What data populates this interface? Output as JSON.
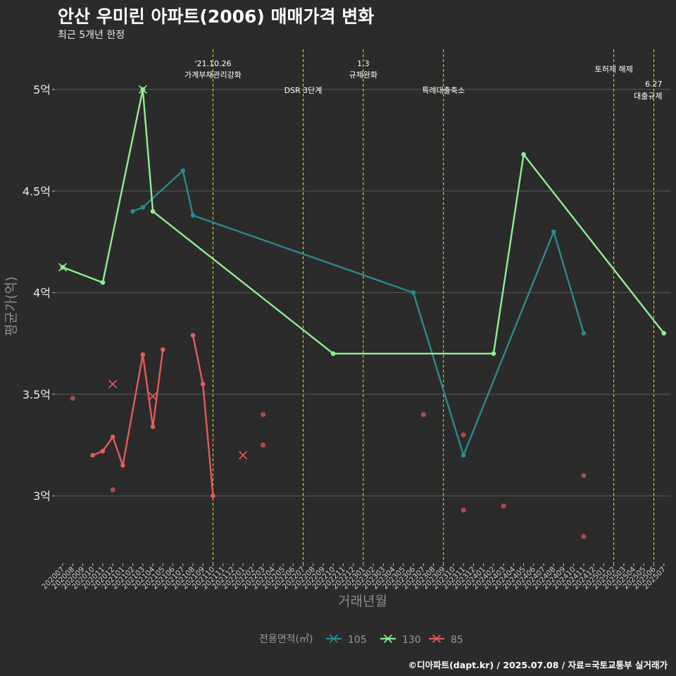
{
  "header": {
    "title": "안산 우미린 아파트(2006) 매매가격 변화",
    "subtitle": "최근 5개년 한정"
  },
  "footer": {
    "caption": "©디아파트(dapt.kr) / 2025.07.08 / 자료=국토교통부 실거래가"
  },
  "colors": {
    "background": "#2b2b2b",
    "grid": "#5a5a5a",
    "event_line": "#e6e61e",
    "s105": "#2a8a8c",
    "s130": "#90ee90",
    "s85": "#e85a5a"
  },
  "chart_data": {
    "type": "line",
    "title": "안산 우미린 아파트(2006) 매매가격 변화",
    "subtitle": "최근 5개년 한정",
    "xlabel": "거래년월",
    "ylabel": "평균가(억)",
    "ylim": [
      2.68,
      5.2
    ],
    "yticks": [
      3,
      3.5,
      4,
      4.5,
      5
    ],
    "ytick_labels": [
      "3억",
      "3.5억",
      "4억",
      "4.5억",
      "5억"
    ],
    "grid": "horizontal",
    "legend": {
      "title": "전용면적(㎡)",
      "position": "bottom",
      "entries": [
        "105",
        "130",
        "85"
      ]
    },
    "categories": [
      "202007",
      "202008",
      "202009",
      "202010",
      "202011",
      "202012",
      "202101",
      "202102",
      "202103",
      "202104",
      "202105",
      "202106",
      "202107",
      "202108",
      "202109",
      "202110",
      "202111",
      "202112",
      "202201",
      "202202",
      "202203",
      "202204",
      "202205",
      "202206",
      "202207",
      "202208",
      "202209",
      "202210",
      "202211",
      "202212",
      "202301",
      "202302",
      "202303",
      "202304",
      "202305",
      "202306",
      "202307",
      "202308",
      "202309",
      "202310",
      "202311",
      "202312",
      "202401",
      "202402",
      "202403",
      "202404",
      "202405",
      "202406",
      "202407",
      "202408",
      "202409",
      "202410",
      "202411",
      "202412",
      "202501",
      "202502",
      "202503",
      "202504",
      "202505",
      "202506",
      "202507"
    ],
    "events": [
      {
        "x": "202110",
        "label_line1": "'21.10.26",
        "label_line2": "가계부채관리강화"
      },
      {
        "x": "202207",
        "label_line1": "",
        "label_line2": "DSR 3단계"
      },
      {
        "x": "202301",
        "label_line1": "1.3",
        "label_line2": "규제완화"
      },
      {
        "x": "202309",
        "label_line1": "",
        "label_line2": "특례대출축소"
      },
      {
        "x": "202502",
        "label_line1": "",
        "label_line2": "토허제 해제"
      },
      {
        "x": "202506",
        "label_line1": "6.27",
        "label_line2": "대출규제"
      }
    ],
    "series": [
      {
        "name": "105",
        "line": [
          [
            "202102",
            4.4
          ],
          [
            "202103",
            4.42
          ],
          [
            "202107",
            4.6
          ],
          [
            "202108",
            4.38
          ],
          [
            "202306",
            4.0
          ],
          [
            "202311",
            3.2
          ],
          [
            "202408",
            4.3
          ],
          [
            "202411",
            3.8
          ]
        ],
        "markers": [],
        "points": []
      },
      {
        "name": "130",
        "line": [
          [
            "202007",
            4.125
          ],
          [
            "202011",
            4.05
          ],
          [
            "202103",
            5.0
          ],
          [
            "202104",
            4.4
          ],
          [
            "202210",
            3.7
          ],
          [
            "202402",
            3.7
          ],
          [
            "202405",
            4.68
          ],
          [
            "202507",
            3.8
          ]
        ],
        "markers": [
          [
            "202007",
            4.125
          ],
          [
            "202103",
            5.0
          ]
        ],
        "points": []
      },
      {
        "name": "85",
        "line": [
          [
            "202010",
            3.2
          ],
          [
            "202011",
            3.22
          ],
          [
            "202012",
            3.29
          ],
          [
            "202101",
            3.15
          ],
          [
            "202103",
            3.695
          ],
          [
            "202104",
            3.34
          ],
          [
            "202105",
            3.72
          ]
        ],
        "line2": [
          [
            "202108",
            3.79
          ],
          [
            "202109",
            3.55
          ],
          [
            "202110",
            3.0
          ]
        ],
        "markers": [
          [
            "202012",
            3.55
          ],
          [
            "202104",
            3.49
          ],
          [
            "202201",
            3.2
          ]
        ],
        "points": [
          [
            "202008",
            3.48
          ],
          [
            "202012",
            3.03
          ],
          [
            "202203",
            3.4
          ],
          [
            "202203",
            3.25
          ],
          [
            "202307",
            3.4
          ],
          [
            "202311",
            3.3
          ],
          [
            "202311",
            2.93
          ],
          [
            "202403",
            2.95
          ],
          [
            "202411",
            3.1
          ],
          [
            "202411",
            2.8
          ]
        ]
      }
    ]
  }
}
